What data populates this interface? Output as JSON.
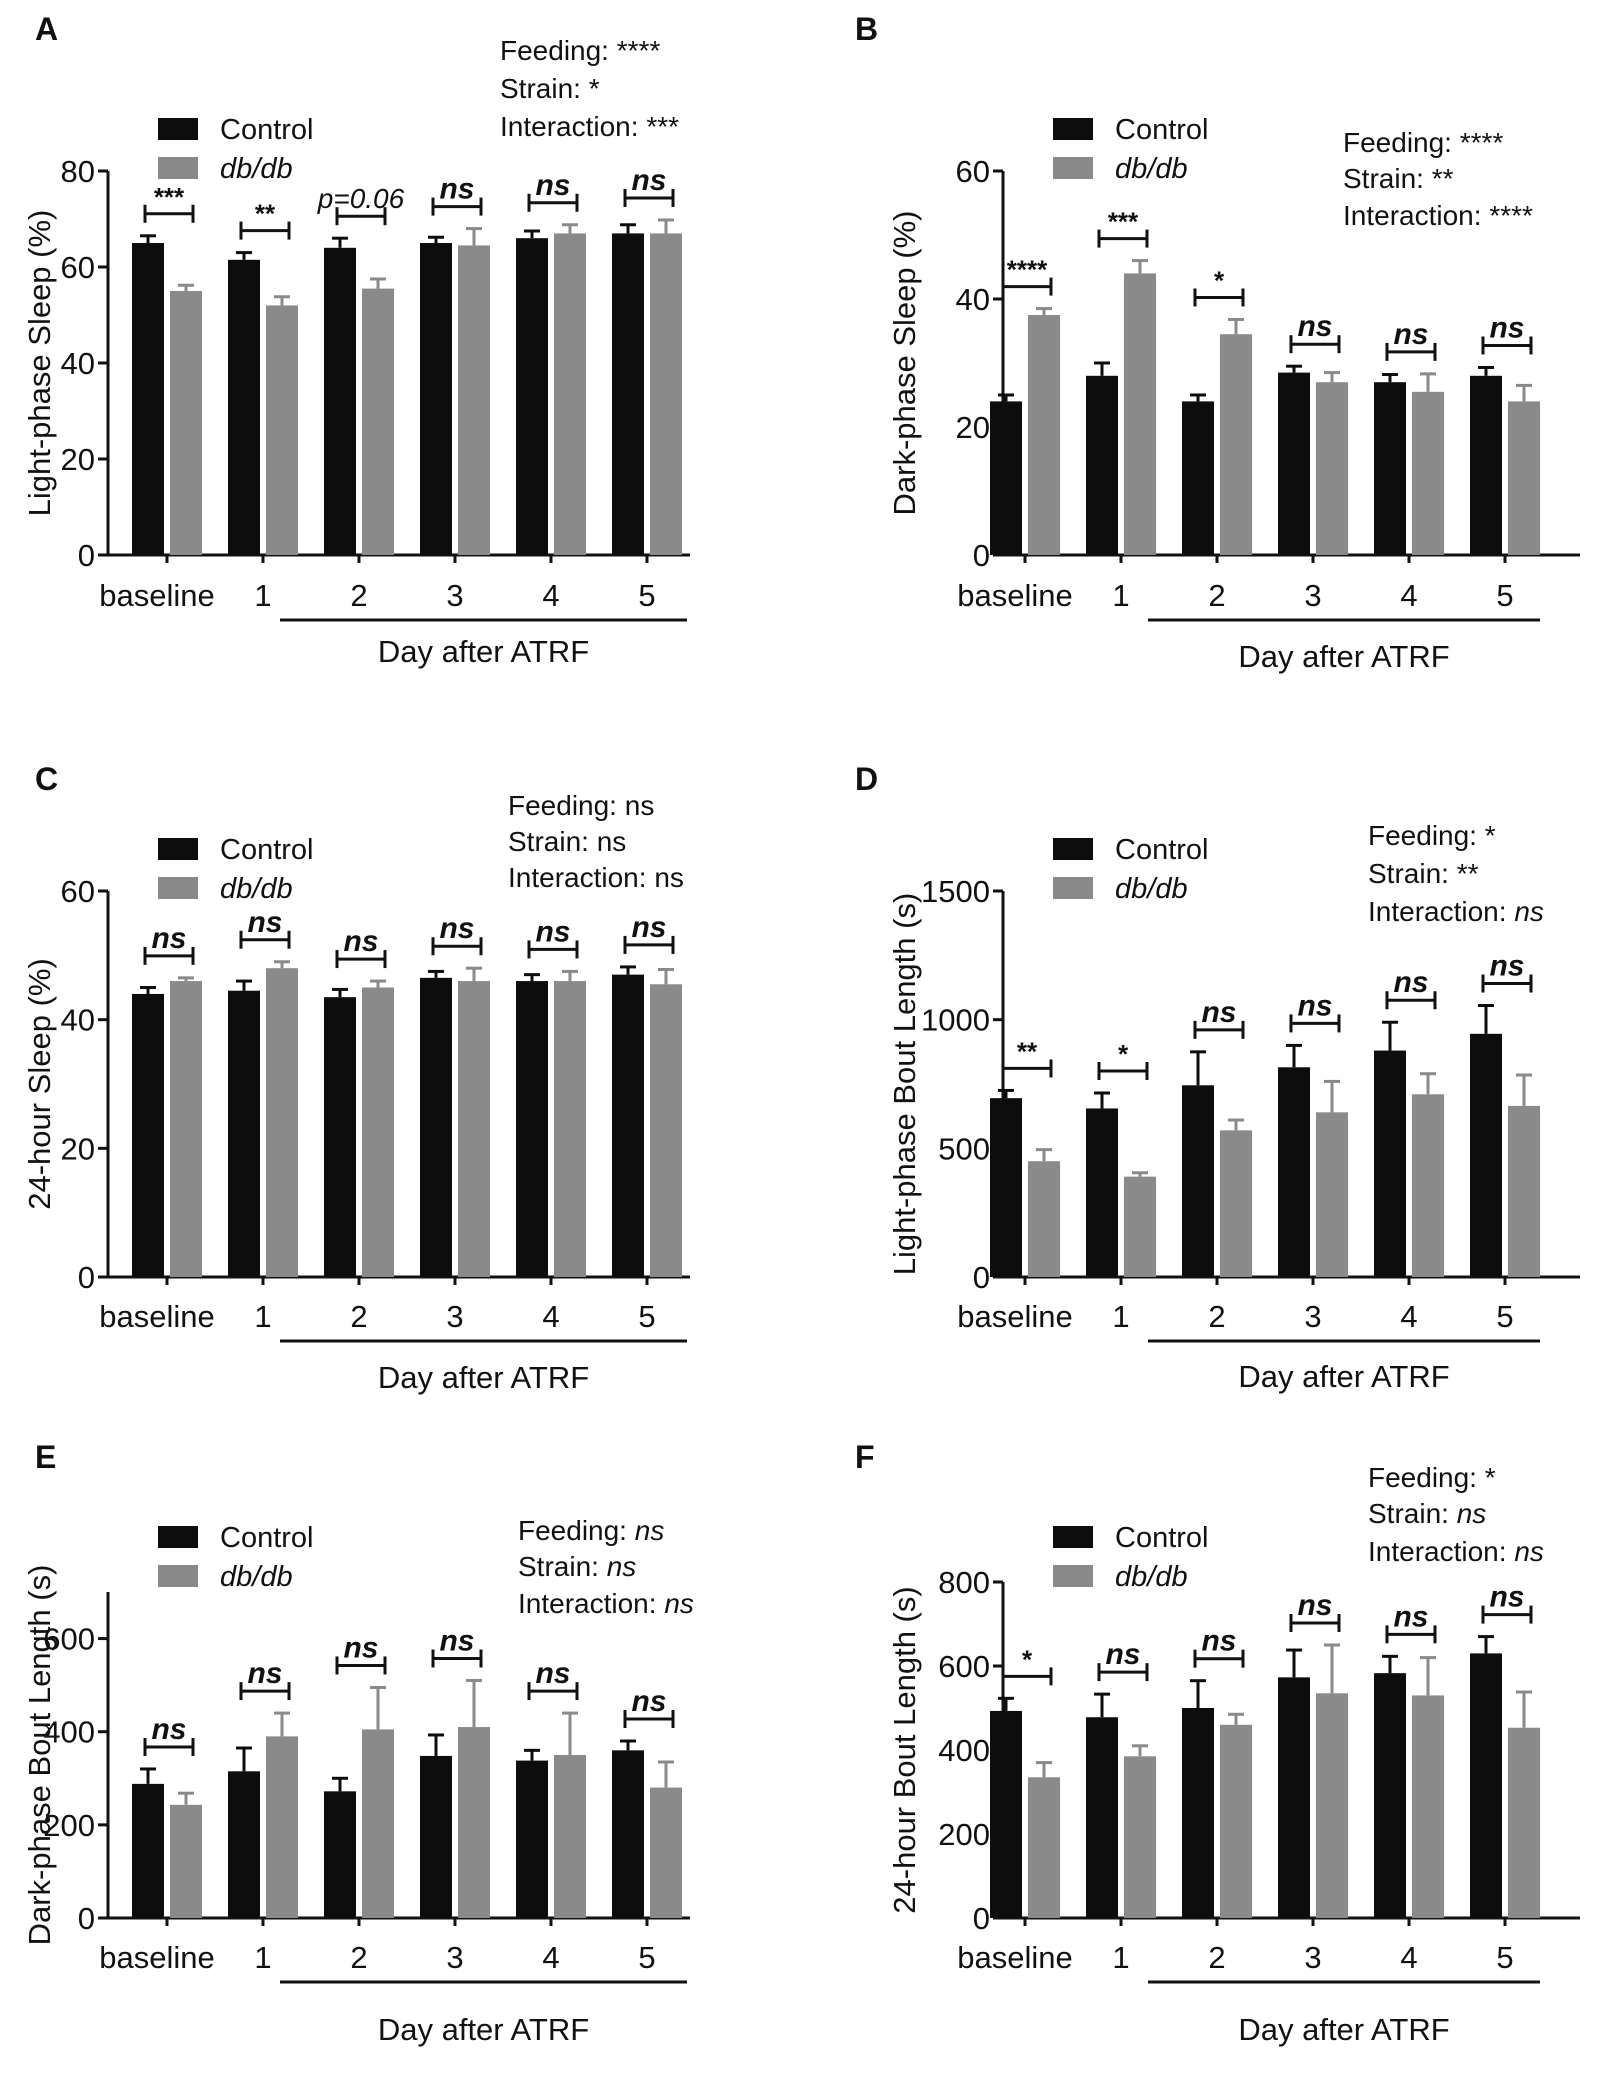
{
  "figure": {
    "series_names": [
      "Control",
      "db/db"
    ],
    "series_colors": [
      "#0d0d0d",
      "#8a8a8a"
    ],
    "x_group_label": "Day after ATRF"
  },
  "chart_data": [
    {
      "panel": "A",
      "type": "bar",
      "ylabel": "Light-phase Sleep (%)",
      "ylim": [
        0,
        80
      ],
      "yticks": [
        0,
        20,
        40,
        60,
        80
      ],
      "categories": [
        "baseline",
        "1",
        "2",
        "3",
        "4",
        "5"
      ],
      "xlabel": "Day after ATRF",
      "legend": [
        "Control",
        "db/db"
      ],
      "legend_position": "top-left",
      "stats_text": [
        "Feeding: ****",
        "Strain: *",
        "Interaction: ***"
      ],
      "series": [
        {
          "name": "Control",
          "values": [
            65,
            61.5,
            64,
            65,
            66,
            67
          ],
          "errors": [
            1.5,
            1.5,
            2,
            1.2,
            1.5,
            1.8
          ]
        },
        {
          "name": "db/db",
          "values": [
            55,
            52,
            55.5,
            64.5,
            67,
            67
          ],
          "errors": [
            1.2,
            1.8,
            2,
            3.5,
            1.8,
            2.8
          ]
        }
      ],
      "annotations": [
        "***",
        "**",
        "p=0.06",
        "ns",
        "ns",
        "ns"
      ]
    },
    {
      "panel": "B",
      "type": "bar",
      "ylabel": "Dark-phase Sleep (%)",
      "ylim": [
        0,
        60
      ],
      "yticks": [
        0,
        20,
        40,
        60
      ],
      "categories": [
        "baseline",
        "1",
        "2",
        "3",
        "4",
        "5"
      ],
      "xlabel": "Day after ATRF",
      "legend": [
        "Control",
        "db/db"
      ],
      "legend_position": "top-left",
      "stats_text": [
        "Feeding: ****",
        "Strain: **",
        "Interaction: ****"
      ],
      "series": [
        {
          "name": "Control",
          "values": [
            24,
            28,
            24,
            28.5,
            27,
            28
          ],
          "errors": [
            1,
            2,
            1,
            1,
            1.2,
            1.3
          ]
        },
        {
          "name": "db/db",
          "values": [
            37.5,
            44,
            34.5,
            27,
            25.5,
            24
          ],
          "errors": [
            1,
            2,
            2.3,
            1.5,
            2.8,
            2.5
          ]
        }
      ],
      "annotations": [
        "****",
        "***",
        "*",
        "ns",
        "ns",
        "ns"
      ]
    },
    {
      "panel": "C",
      "type": "bar",
      "ylabel": "24-hour Sleep (%)",
      "ylim": [
        0,
        60
      ],
      "yticks": [
        0,
        20,
        40,
        60
      ],
      "categories": [
        "baseline",
        "1",
        "2",
        "3",
        "4",
        "5"
      ],
      "xlabel": "Day after ATRF",
      "legend": [
        "Control",
        "db/db"
      ],
      "legend_position": "top-left",
      "stats_text": [
        "Feeding: ns",
        "Strain: ns",
        "Interaction: ns"
      ],
      "series": [
        {
          "name": "Control",
          "values": [
            44,
            44.5,
            43.5,
            46.5,
            46,
            47
          ],
          "errors": [
            1,
            1.5,
            1.2,
            1,
            1,
            1.2
          ]
        },
        {
          "name": "db/db",
          "values": [
            46,
            48,
            45,
            46,
            46,
            45.5
          ],
          "errors": [
            0.5,
            1,
            1,
            2,
            1.5,
            2.3
          ]
        }
      ],
      "annotations": [
        "ns",
        "ns",
        "ns",
        "ns",
        "ns",
        "ns"
      ]
    },
    {
      "panel": "D",
      "type": "bar",
      "ylabel": "Light-phase Bout Length (s)",
      "ylim": [
        0,
        1500
      ],
      "yticks": [
        0,
        500,
        1000,
        1500
      ],
      "categories": [
        "baseline",
        "1",
        "2",
        "3",
        "4",
        "5"
      ],
      "xlabel": "Day after ATRF",
      "legend": [
        "Control",
        "db/db"
      ],
      "legend_position": "top-left",
      "stats_text": [
        "Feeding: *",
        "Strain: **",
        "Interaction: ns"
      ],
      "series": [
        {
          "name": "Control",
          "values": [
            695,
            655,
            745,
            815,
            880,
            945
          ],
          "errors": [
            30,
            60,
            130,
            85,
            110,
            110
          ]
        },
        {
          "name": "db/db",
          "values": [
            450,
            390,
            570,
            640,
            710,
            665
          ],
          "errors": [
            45,
            15,
            40,
            120,
            80,
            120
          ]
        }
      ],
      "annotations": [
        "**",
        "*",
        "ns",
        "ns",
        "ns",
        "ns"
      ]
    },
    {
      "panel": "E",
      "type": "bar",
      "ylabel": "Dark-phase Bout Length (s)",
      "ylim": [
        0,
        700
      ],
      "yticks": [
        0,
        200,
        400,
        600
      ],
      "categories": [
        "baseline",
        "1",
        "2",
        "3",
        "4",
        "5"
      ],
      "xlabel": "Day after ATRF",
      "legend": [
        "Control",
        "db/db"
      ],
      "legend_position": "top-left",
      "stats_text": [
        "Feeding: ns",
        "Strain: ns",
        "Interaction: ns"
      ],
      "series": [
        {
          "name": "Control",
          "values": [
            288,
            315,
            272,
            348,
            338,
            360
          ],
          "errors": [
            32,
            50,
            28,
            45,
            22,
            20
          ]
        },
        {
          "name": "db/db",
          "values": [
            243,
            390,
            405,
            410,
            350,
            280
          ],
          "errors": [
            25,
            50,
            90,
            100,
            90,
            55
          ]
        }
      ],
      "annotations": [
        "ns",
        "ns",
        "ns",
        "ns",
        "ns",
        "ns"
      ]
    },
    {
      "panel": "F",
      "type": "bar",
      "ylabel": "24-hour Bout Length (s)",
      "ylim": [
        0,
        800
      ],
      "yticks": [
        0,
        200,
        400,
        600,
        800
      ],
      "categories": [
        "baseline",
        "1",
        "2",
        "3",
        "4",
        "5"
      ],
      "xlabel": "Day after ATRF",
      "legend": [
        "Control",
        "db/db"
      ],
      "legend_position": "top-left",
      "stats_text": [
        "Feeding: *",
        "Strain: ns",
        "Interaction: ns"
      ],
      "series": [
        {
          "name": "Control",
          "values": [
            493,
            478,
            500,
            573,
            583,
            630
          ],
          "errors": [
            30,
            55,
            65,
            65,
            40,
            40
          ]
        },
        {
          "name": "db/db",
          "values": [
            335,
            385,
            460,
            535,
            530,
            453
          ],
          "errors": [
            35,
            25,
            25,
            115,
            90,
            85
          ]
        }
      ],
      "annotations": [
        "*",
        "ns",
        "ns",
        "ns",
        "ns",
        "ns"
      ]
    }
  ]
}
